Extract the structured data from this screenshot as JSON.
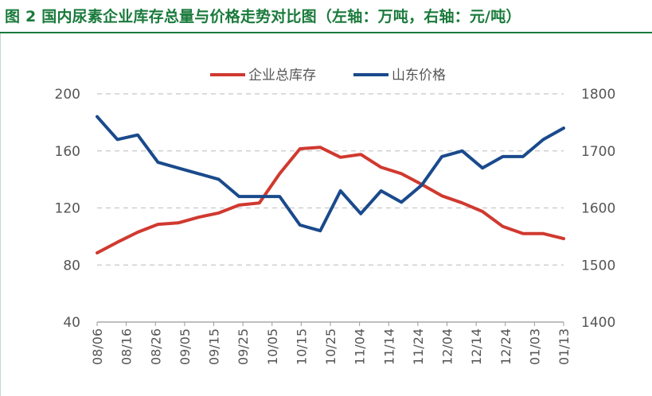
{
  "title": "图 2  国内尿素企业库存总量与价格走势对比图（左轴：万吨，右轴：元/吨）",
  "colors": {
    "inventory": "#d0392f",
    "price": "#1a4a8c",
    "title": "#1a7a3c",
    "grid": "#c8c8c8"
  },
  "chart_data": {
    "type": "line",
    "title": "图 2  国内尿素企业库存总量与价格走势对比图（左轴：万吨，右轴：元/吨）",
    "xlabel": "",
    "ylabel_left": "",
    "ylabel_right": "",
    "grid": true,
    "legend_position": "top-center",
    "x_tick_labels": [
      "08/06",
      "08/16",
      "08/26",
      "09/05",
      "09/15",
      "09/25",
      "10/05",
      "10/15",
      "10/25",
      "11/04",
      "11/14",
      "11/24",
      "12/04",
      "12/14",
      "12/24",
      "01/03",
      "01/13"
    ],
    "y_left": {
      "lim": [
        40,
        200
      ],
      "ticks": [
        40,
        80,
        120,
        160,
        200
      ]
    },
    "y_right": {
      "lim": [
        1400,
        1800
      ],
      "ticks": [
        1400,
        1500,
        1600,
        1700,
        1800
      ]
    },
    "x": [
      "08/06",
      "08/13",
      "08/20",
      "08/27",
      "09/03",
      "09/10",
      "09/17",
      "09/24",
      "10/01",
      "10/08",
      "10/15",
      "10/22",
      "10/29",
      "11/05",
      "11/12",
      "11/19",
      "11/26",
      "12/03",
      "12/10",
      "12/17",
      "12/24",
      "12/31",
      "01/07",
      "01/14"
    ],
    "series": [
      {
        "name": "企业总库存",
        "axis": "left",
        "color": "#d0392f",
        "values": [
          88.5,
          96,
          103,
          108.5,
          109.5,
          113.5,
          116.5,
          122,
          123.5,
          144,
          161.5,
          162.5,
          155.5,
          157.5,
          148.5,
          144,
          136.5,
          128.5,
          123.5,
          117.5,
          107,
          102,
          102,
          98.5
        ]
      },
      {
        "name": "山东价格",
        "axis": "right",
        "color": "#1a4a8c",
        "values": [
          1760,
          1720,
          1728,
          1680,
          1670,
          1660,
          1650,
          1620,
          1620,
          1620,
          1570,
          1560,
          1630,
          1590,
          1630,
          1610,
          1640,
          1690,
          1700,
          1670,
          1690,
          1690,
          1720,
          1740
        ]
      }
    ]
  }
}
